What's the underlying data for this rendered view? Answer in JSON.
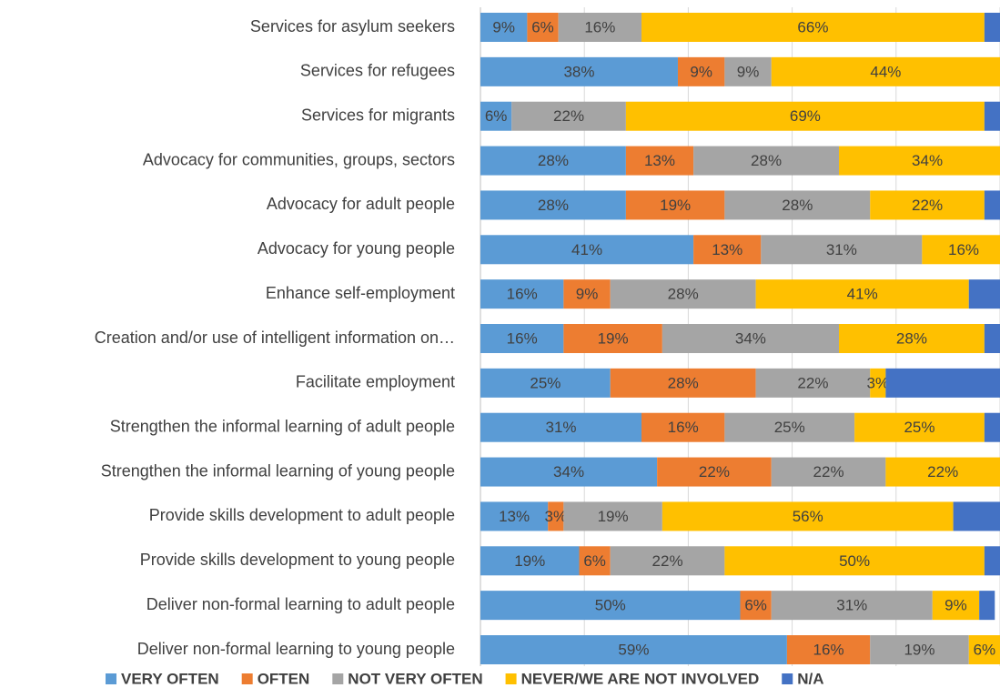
{
  "chart_data": {
    "type": "stacked_barh",
    "categories": [
      "Services for asylum seekers",
      "Services for refugees",
      "Services for migrants",
      "Advocacy for communities, groups, sectors",
      "Advocacy for adult people",
      "Advocacy for young people",
      "Enhance self-employment",
      "Creation and/or use of intelligent information on…",
      "Facilitate employment",
      "Strengthen the informal learning of adult people",
      "Strengthen the informal learning of young people",
      "Provide skills development to adult people",
      "Provide skills development to young people",
      "Deliver non-formal learning to adult people",
      "Deliver non-formal learning to young people"
    ],
    "series": [
      {
        "name": "VERY OFTEN",
        "color": "#5b9bd5",
        "values": [
          9,
          38,
          6,
          28,
          28,
          41,
          16,
          16,
          25,
          31,
          34,
          13,
          19,
          50,
          59
        ],
        "value_labels": [
          "9%",
          "38%",
          "6%",
          "28%",
          "28%",
          "41%",
          "16%",
          "16%",
          "25%",
          "31%",
          "34%",
          "13%",
          "19%",
          "50%",
          "59%"
        ]
      },
      {
        "name": "OFTEN",
        "color": "#ed7d31",
        "values": [
          6,
          9,
          0,
          13,
          19,
          13,
          9,
          19,
          28,
          16,
          22,
          3,
          6,
          6,
          16
        ],
        "value_labels": [
          "6%",
          "9%",
          null,
          "13%",
          "19%",
          "13%",
          "9%",
          "19%",
          "28%",
          "16%",
          "22%",
          "3%",
          "6%",
          "6%",
          "16%"
        ]
      },
      {
        "name": "NOT VERY OFTEN",
        "color": "#a5a5a5",
        "values": [
          16,
          9,
          22,
          28,
          28,
          31,
          28,
          34,
          22,
          25,
          22,
          19,
          22,
          31,
          19
        ],
        "value_labels": [
          "16%",
          "9%",
          "22%",
          "28%",
          "28%",
          "31%",
          "28%",
          "34%",
          "22%",
          "25%",
          "22%",
          "19%",
          "22%",
          "31%",
          "19%"
        ]
      },
      {
        "name": "NEVER/WE ARE NOT INVOLVED",
        "color": "#ffc000",
        "values": [
          66,
          44,
          69,
          34,
          22,
          16,
          41,
          28,
          3,
          25,
          22,
          56,
          50,
          9,
          6
        ],
        "value_labels": [
          "66%",
          "44%",
          "69%",
          "34%",
          "22%",
          "16%",
          "41%",
          "28%",
          "3%",
          "25%",
          "22%",
          "56%",
          "50%",
          "9%",
          "6%"
        ]
      },
      {
        "name": "N/A",
        "color": "#4472c4",
        "values": [
          3,
          0,
          3,
          3,
          3,
          0,
          6,
          3,
          22,
          3,
          0,
          9,
          3,
          3,
          0
        ],
        "value_labels": [
          null,
          null,
          null,
          null,
          null,
          null,
          null,
          null,
          null,
          null,
          null,
          null,
          null,
          null,
          null
        ]
      }
    ],
    "xlim": [
      0,
      100
    ],
    "xticks": [
      0,
      20,
      40,
      60,
      80,
      100
    ],
    "grid": true,
    "legend": "bottom"
  }
}
